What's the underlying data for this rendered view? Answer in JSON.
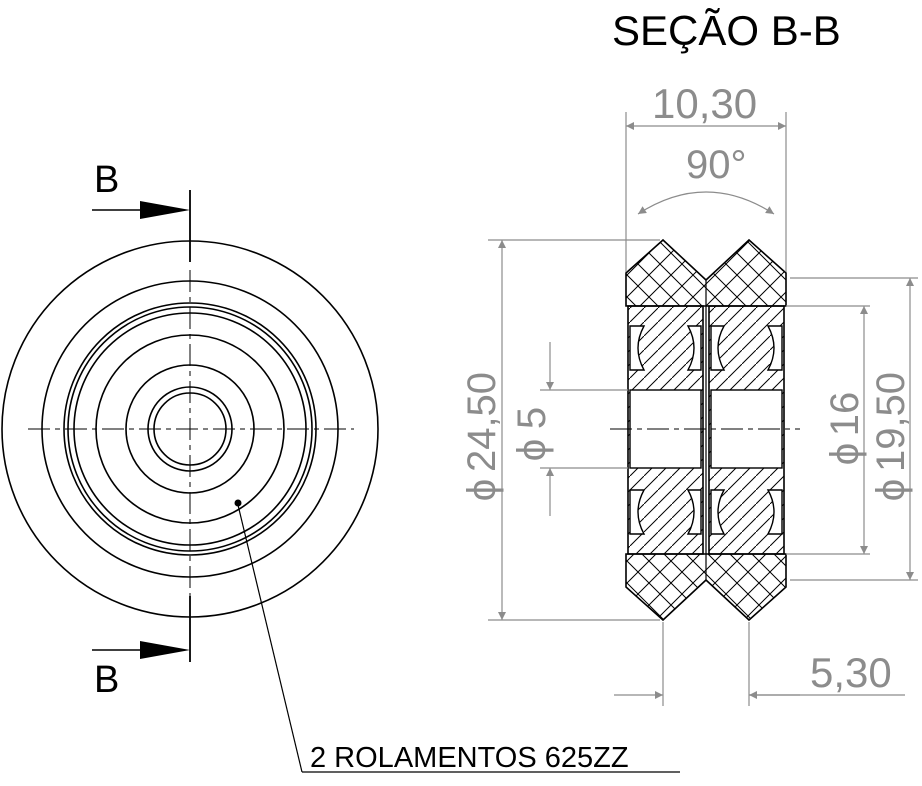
{
  "section_title": "SEÇÃO B-B",
  "cut_labels": {
    "top": "B",
    "bottom": "B"
  },
  "dimensions": {
    "width": "10,30",
    "angle": "90°",
    "outer_diameter": "24,50",
    "bore_diameter": "5",
    "inner_diameter": "16",
    "bearing_outer": "19,50",
    "half_width": "5,30",
    "diameter_symbol": "ϕ"
  },
  "callout": "2 ROLAMENTOS 625ZZ",
  "colors": {
    "line": "#000000",
    "dimension": "#8c8c8c",
    "background": "#ffffff"
  }
}
